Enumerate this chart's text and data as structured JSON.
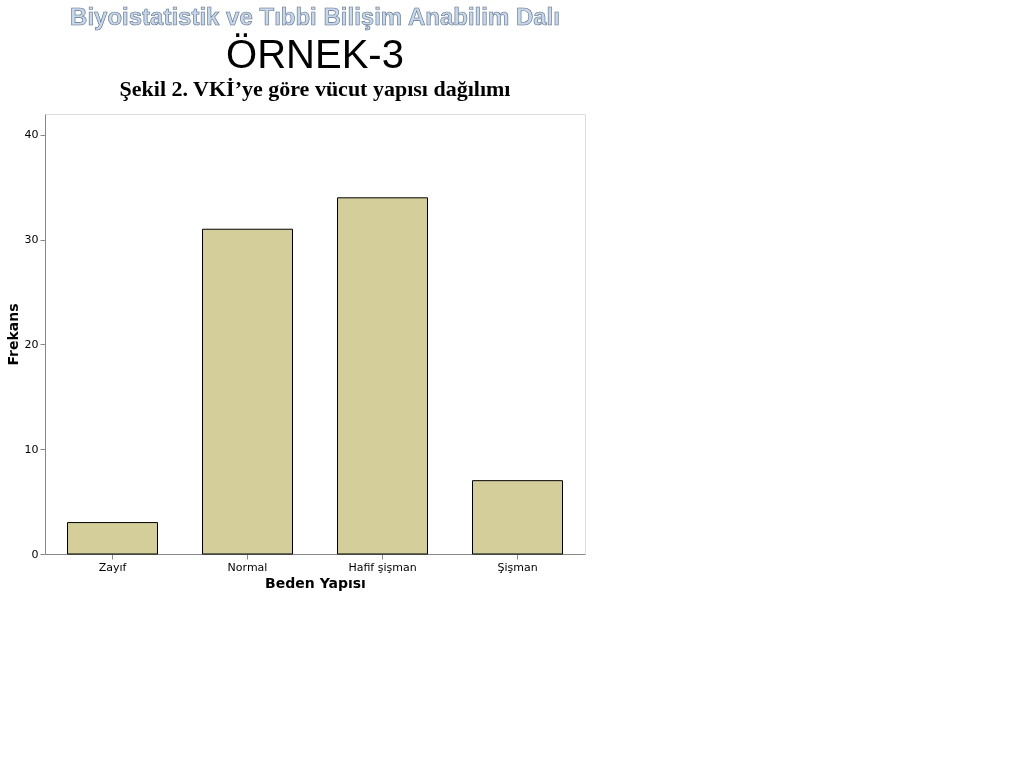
{
  "chart_data": {
    "type": "bar",
    "title": "ÖRNEK-3",
    "subtitle": "Şekil 2. VKİ’ye göre vücut yapısı dağılımı",
    "annotations": [
      "Biyoistatistik ve Tıbbi Bilişim Anabilim Dalı"
    ],
    "xlabel": "Beden Yapısı",
    "ylabel": "Frekans",
    "categories": [
      "Zayıf",
      "Normal",
      "Hafif şişman",
      "Şişman"
    ],
    "values": [
      3,
      31,
      34,
      7
    ],
    "color": "#d4cf9a",
    "ylim": [
      0,
      42
    ],
    "yticks": [
      0,
      10,
      20,
      30,
      40
    ],
    "grid": false
  }
}
